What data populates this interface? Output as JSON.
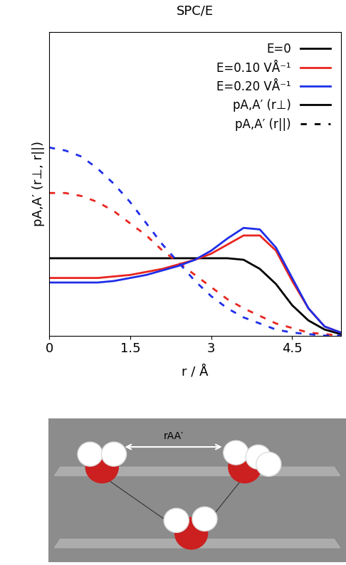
{
  "chart_data": {
    "type": "line",
    "title": "SPC/E",
    "x_label": "r / Å",
    "y_label": "pA,A′ (r⊥, r||)",
    "x": [
      0,
      0.3,
      0.6,
      0.9,
      1.2,
      1.5,
      1.8,
      2.1,
      2.4,
      2.7,
      3.0,
      3.3,
      3.6,
      3.9,
      4.2,
      4.5,
      4.8,
      5.1,
      5.4
    ],
    "xlim": [
      0,
      5.4
    ],
    "xticks": [
      0,
      1.5,
      3,
      4.5
    ],
    "ylim": [
      0,
      1
    ],
    "yticks": [],
    "tick_labels": "x",
    "legend": "upper right",
    "series": [
      {
        "name": "E=0",
        "color": "#000000",
        "curves": [
          {
            "name": "pA,A′ (r⊥)",
            "line_style": "solid",
            "values": [
              0.255,
              0.255,
              0.255,
              0.255,
              0.255,
              0.255,
              0.255,
              0.255,
              0.255,
              0.255,
              0.255,
              0.255,
              0.25,
              0.22,
              0.17,
              0.1,
              0.05,
              0.02,
              0.005
            ]
          }
        ]
      },
      {
        "name": "E=0.10 VÅ⁻¹",
        "color": "#e8251f",
        "curves": [
          {
            "name": "pA,A′ (r⊥)",
            "line_style": "solid",
            "values": [
              0.19,
              0.19,
              0.19,
              0.19,
              0.195,
              0.2,
              0.21,
              0.22,
              0.235,
              0.25,
              0.27,
              0.3,
              0.33,
              0.33,
              0.28,
              0.18,
              0.09,
              0.03,
              0.01
            ]
          },
          {
            "name": "pA,A′ (r||)",
            "line_style": "dashed",
            "values": [
              0.47,
              0.47,
              0.46,
              0.44,
              0.41,
              0.37,
              0.33,
              0.28,
              0.24,
              0.2,
              0.16,
              0.12,
              0.09,
              0.065,
              0.04,
              0.025,
              0.01,
              0.005,
              0
            ]
          }
        ]
      },
      {
        "name": "E=0.20 VÅ⁻¹",
        "color": "#1f2ee8",
        "curves": [
          {
            "name": "pA,A′ (r⊥)",
            "line_style": "solid",
            "values": [
              0.175,
              0.175,
              0.175,
              0.175,
              0.18,
              0.19,
              0.2,
              0.215,
              0.23,
              0.25,
              0.28,
              0.32,
              0.355,
              0.35,
              0.29,
              0.19,
              0.09,
              0.03,
              0.01
            ]
          },
          {
            "name": "pA,A′ (r||)",
            "line_style": "dashed",
            "values": [
              0.62,
              0.61,
              0.59,
              0.55,
              0.5,
              0.44,
              0.37,
              0.3,
              0.24,
              0.18,
              0.13,
              0.09,
              0.06,
              0.04,
              0.02,
              0.01,
              0.005,
              0,
              0
            ]
          }
        ]
      }
    ],
    "diagram": {
      "label": "rAA′"
    }
  }
}
